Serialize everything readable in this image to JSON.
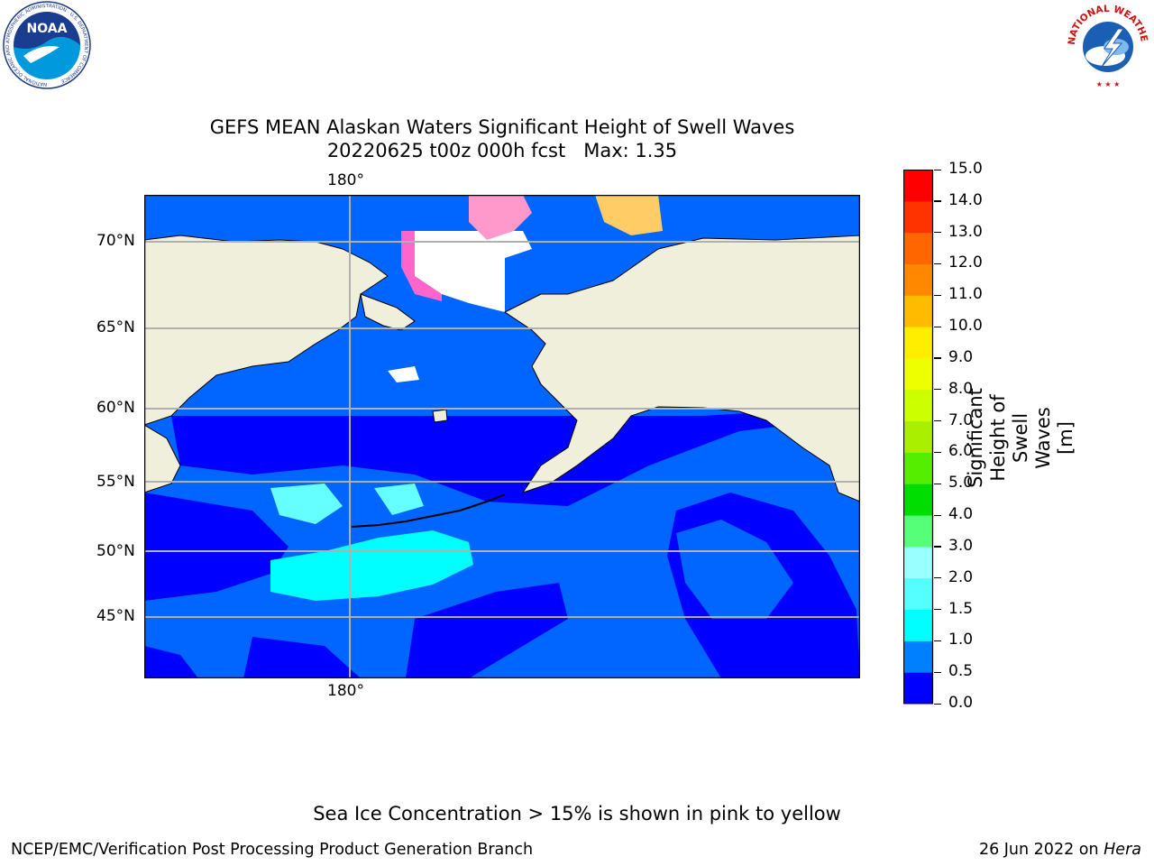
{
  "title_line1": "GEFS MEAN Alaskan Waters Significant Height of Swell Waves",
  "title_line2": "20220625 t00z 000h fcst   Max: 1.35",
  "map": {
    "lon_top_label": "180°",
    "lon_bottom_label": "180°",
    "lat_labels": [
      "70°N",
      "65°N",
      "60°N",
      "55°N",
      "50°N",
      "45°N"
    ],
    "land_color": "#efefdc",
    "ocean_colors": [
      "#0000ff",
      "#0066ff",
      "#00ffff",
      "#99ffff"
    ],
    "ice_colors": [
      "#ff00ff",
      "#ff66cc",
      "#ff9966",
      "#ffcc33",
      "#ffff00"
    ]
  },
  "colorbar": {
    "label": "Significant Height of Swell Waves [m]",
    "ticks": [
      "0.0",
      "0.5",
      "1.0",
      "1.5",
      "2.0",
      "3.0",
      "4.0",
      "5.0",
      "6.0",
      "7.0",
      "8.0",
      "9.0",
      "10.0",
      "11.0",
      "12.0",
      "13.0",
      "14.0",
      "15.0"
    ],
    "colors": [
      "#0000ff",
      "#0080ff",
      "#00ffff",
      "#55ffff",
      "#99ffff",
      "#55ff77",
      "#00dd00",
      "#55ee00",
      "#aaee00",
      "#ccff00",
      "#eeff00",
      "#ffee00",
      "#ffbb00",
      "#ff8800",
      "#ff6600",
      "#ff3300",
      "#ff0000"
    ]
  },
  "caption": "Sea Ice Concentration > 15% is shown in pink to yellow",
  "footer": {
    "left": "NCEP/EMC/Verification Post Processing Product Generation Branch",
    "right_prefix": "26 Jun 2022 on ",
    "right_host": "Hera"
  },
  "logos": {
    "noaa": "NOAA",
    "noaa_ring": "NATIONAL OCEANIC AND ATMOSPHERIC ADMINISTRATION · U.S. DEPARTMENT OF COMMERCE",
    "nws_ring": "NATIONAL WEATHER SERVICE"
  }
}
